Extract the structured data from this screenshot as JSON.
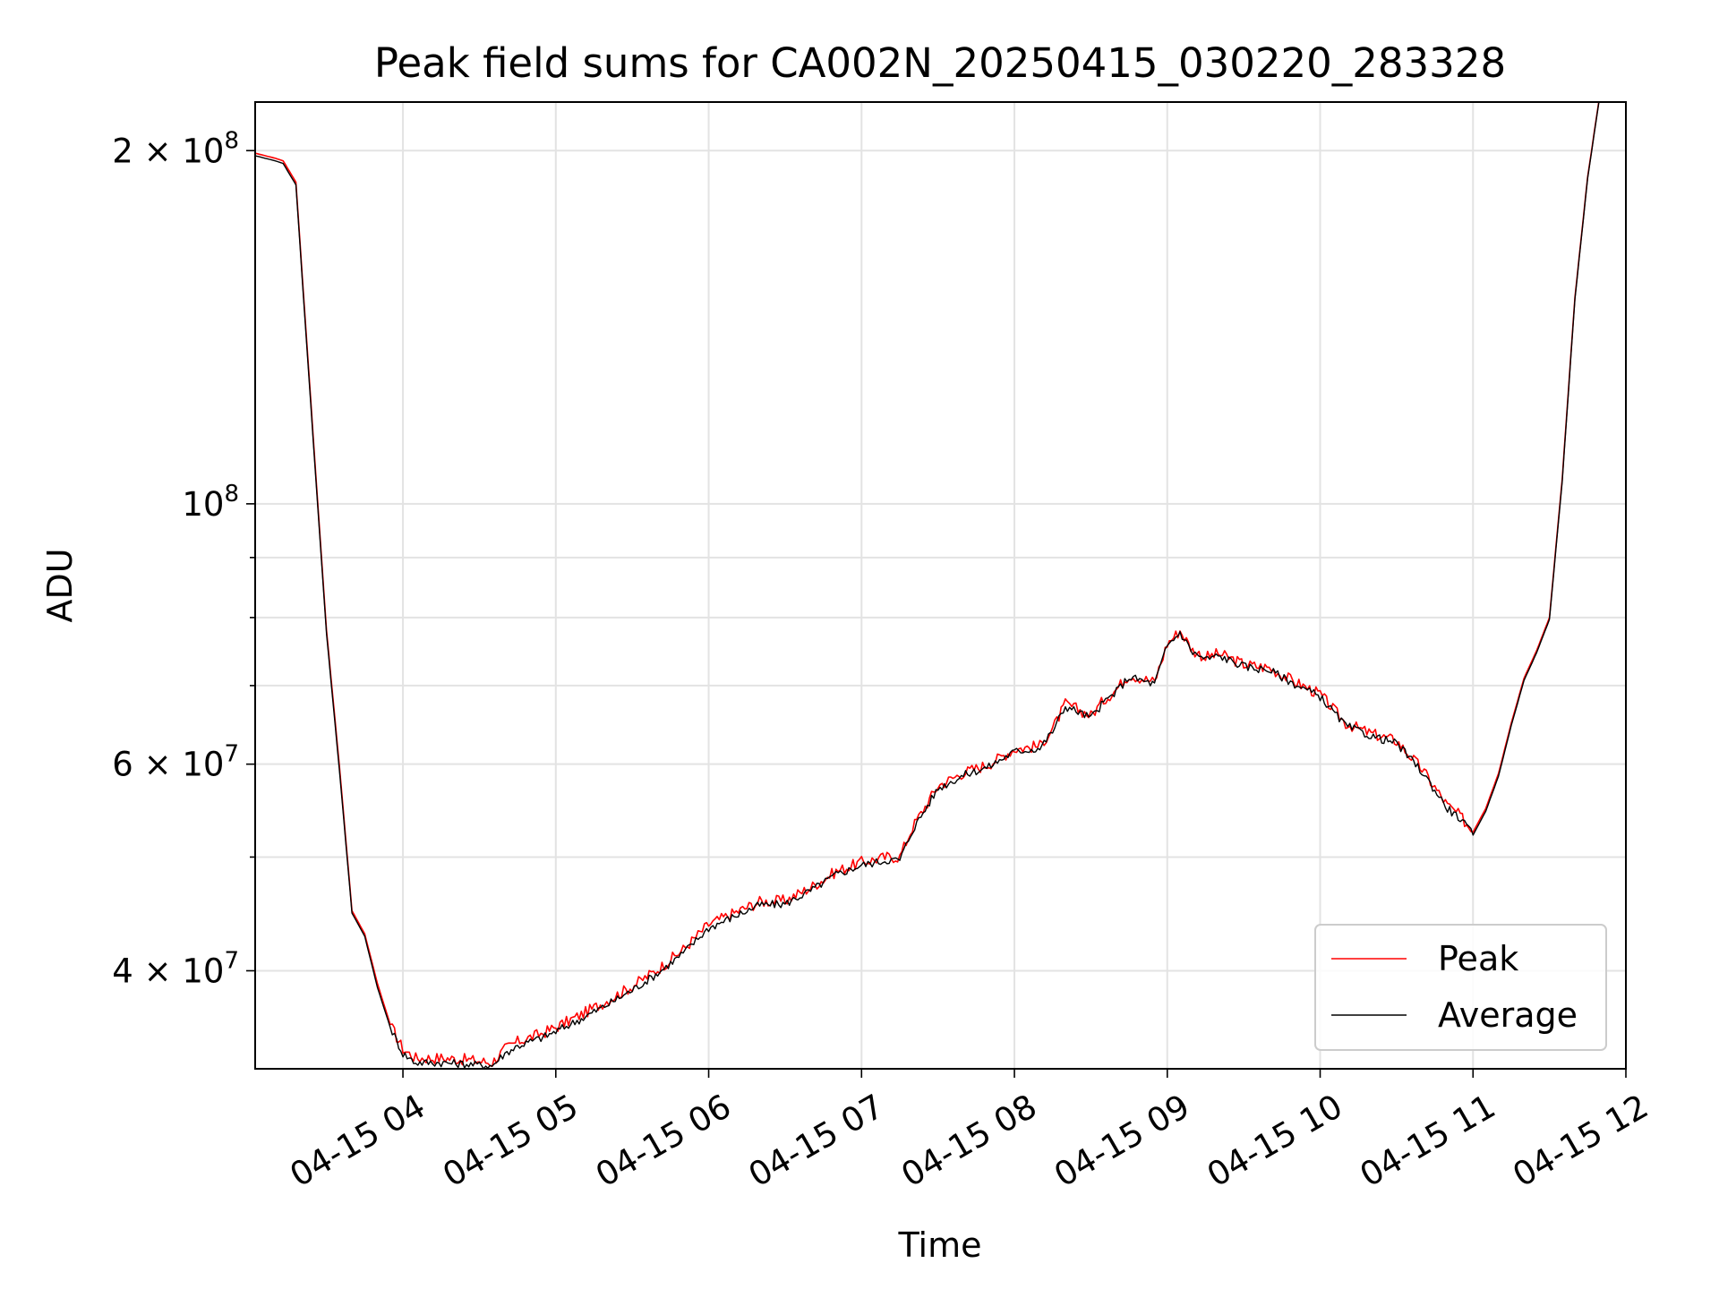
{
  "chart_data": {
    "type": "line",
    "title": "Peak field sums for CA002N_20250415_030220_283328",
    "xlabel": "Time",
    "ylabel": "ADU",
    "x_range": [
      "2025-04-15 03:02",
      "2025-04-15 12:00"
    ],
    "y_scale": "log",
    "y_range": [
      33000000,
      220000000
    ],
    "grid": true,
    "legend_position": "lower right",
    "x_ticks": [
      {
        "value": "2025-04-15 04:00",
        "label": "04-15 04"
      },
      {
        "value": "2025-04-15 05:00",
        "label": "04-15 05"
      },
      {
        "value": "2025-04-15 06:00",
        "label": "04-15 06"
      },
      {
        "value": "2025-04-15 07:00",
        "label": "04-15 07"
      },
      {
        "value": "2025-04-15 08:00",
        "label": "04-15 08"
      },
      {
        "value": "2025-04-15 09:00",
        "label": "04-15 09"
      },
      {
        "value": "2025-04-15 10:00",
        "label": "04-15 10"
      },
      {
        "value": "2025-04-15 11:00",
        "label": "04-15 11"
      },
      {
        "value": "2025-04-15 12:00",
        "label": "04-15 12"
      }
    ],
    "y_major_ticks": [
      {
        "value": 40000000,
        "mantissa": "4",
        "exponent": "7"
      },
      {
        "value": 60000000,
        "mantissa": "6",
        "exponent": "7"
      },
      {
        "value": 100000000,
        "mantissa": "",
        "exponent": "8"
      },
      {
        "value": 200000000,
        "mantissa": "2",
        "exponent": "8"
      }
    ],
    "y_minor_ticks": [
      50000000,
      70000000,
      80000000,
      90000000
    ],
    "series": [
      {
        "name": "Peak",
        "color": "#ff0000",
        "x": [
          "03:02",
          "03:10",
          "03:13",
          "03:18",
          "03:23",
          "03:30",
          "03:35",
          "03:40",
          "03:45",
          "03:50",
          "03:55",
          "04:00",
          "04:05",
          "04:15",
          "04:25",
          "04:35",
          "04:40",
          "04:45",
          "04:50",
          "04:55",
          "05:00",
          "05:10",
          "05:20",
          "05:30",
          "05:40",
          "05:50",
          "06:00",
          "06:10",
          "06:20",
          "06:30",
          "06:40",
          "06:50",
          "07:00",
          "07:10",
          "07:15",
          "07:20",
          "07:30",
          "07:40",
          "07:50",
          "08:00",
          "08:10",
          "08:15",
          "08:20",
          "08:25",
          "08:30",
          "08:35",
          "08:40",
          "08:45",
          "08:50",
          "08:55",
          "09:00",
          "09:05",
          "09:10",
          "09:15",
          "09:20",
          "09:25",
          "09:30",
          "09:35",
          "09:40",
          "09:50",
          "10:00",
          "10:10",
          "10:20",
          "10:30",
          "10:40",
          "10:50",
          "10:55",
          "11:00",
          "11:05",
          "11:10",
          "11:15",
          "11:20",
          "11:25",
          "11:30",
          "11:35",
          "11:40",
          "11:45",
          "11:50",
          "11:52"
        ],
        "values": [
          199000000,
          197000000,
          196000000,
          188000000,
          130000000,
          78000000,
          60000000,
          45000000,
          43000000,
          39000000,
          36000000,
          34300000,
          33700000,
          33700000,
          33600000,
          33400000,
          34300000,
          34800000,
          35100000,
          35400000,
          35800000,
          36700000,
          37700000,
          38800000,
          40100000,
          41700000,
          43800000,
          44800000,
          45800000,
          45900000,
          47100000,
          48600000,
          49500000,
          50000000,
          50000000,
          53000000,
          57500000,
          59000000,
          60000000,
          61800000,
          62200000,
          64300000,
          67500000,
          66800000,
          66000000,
          68000000,
          69500000,
          71500000,
          71000000,
          70500000,
          76000000,
          78000000,
          75000000,
          74000000,
          74500000,
          73800000,
          73000000,
          72700000,
          72500000,
          70500000,
          68800000,
          65000000,
          63700000,
          62800000,
          59400000,
          55300000,
          54200000,
          52500000,
          55000000,
          58900000,
          65000000,
          71000000,
          75000000,
          80000000,
          105000000,
          150000000,
          190000000,
          225000000,
          240000000
        ]
      },
      {
        "name": "Average",
        "color": "#000000",
        "x": [
          "03:02",
          "03:10",
          "03:13",
          "03:18",
          "03:23",
          "03:30",
          "03:35",
          "03:40",
          "03:45",
          "03:50",
          "03:55",
          "04:00",
          "04:05",
          "04:15",
          "04:25",
          "04:35",
          "04:40",
          "04:45",
          "04:50",
          "04:55",
          "05:00",
          "05:10",
          "05:20",
          "05:30",
          "05:40",
          "05:50",
          "06:00",
          "06:10",
          "06:20",
          "06:30",
          "06:40",
          "06:50",
          "07:00",
          "07:10",
          "07:15",
          "07:20",
          "07:30",
          "07:40",
          "07:50",
          "08:00",
          "08:10",
          "08:15",
          "08:20",
          "08:25",
          "08:30",
          "08:35",
          "08:40",
          "08:45",
          "08:50",
          "08:55",
          "09:00",
          "09:05",
          "09:10",
          "09:15",
          "09:20",
          "09:25",
          "09:30",
          "09:35",
          "09:40",
          "09:50",
          "10:00",
          "10:10",
          "10:20",
          "10:30",
          "10:40",
          "10:50",
          "10:55",
          "11:00",
          "11:05",
          "11:10",
          "11:15",
          "11:20",
          "11:25",
          "11:30",
          "11:35",
          "11:40",
          "11:45",
          "11:50",
          "11:52"
        ],
        "values": [
          198000000,
          196000000,
          195000000,
          187000000,
          129000000,
          77500000,
          59500000,
          44800000,
          42800000,
          38700000,
          35800000,
          34000000,
          33400000,
          33400000,
          33300000,
          33200000,
          34000000,
          34500000,
          34800000,
          35100000,
          35500000,
          36400000,
          37400000,
          38500000,
          39800000,
          41400000,
          43500000,
          44500000,
          45500000,
          45600000,
          46800000,
          48300000,
          49200000,
          49700000,
          49700000,
          52700000,
          57200000,
          58700000,
          59700000,
          61500000,
          61900000,
          64000000,
          67200000,
          66500000,
          65700000,
          67700000,
          69200000,
          71200000,
          70700000,
          70200000,
          75700000,
          77700000,
          74700000,
          73700000,
          74200000,
          73500000,
          72700000,
          72400000,
          72200000,
          70200000,
          68500000,
          64700000,
          63400000,
          62500000,
          59100000,
          55000000,
          53900000,
          52200000,
          54700000,
          58600000,
          64700000,
          70700000,
          74700000,
          79700000,
          104500000,
          149500000,
          189500000,
          224500000,
          239500000
        ]
      }
    ]
  }
}
